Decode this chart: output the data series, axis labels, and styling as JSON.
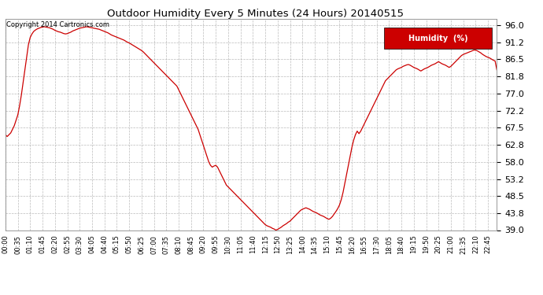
{
  "title": "Outdoor Humidity Every 5 Minutes (24 Hours) 20140515",
  "copyright": "Copyright 2014 Cartronics.com",
  "legend_label": "Humidity  (%)",
  "line_color": "#cc0000",
  "background_color": "#ffffff",
  "grid_color": "#aaaaaa",
  "ylim": [
    39.0,
    97.6
  ],
  "yticks": [
    39.0,
    43.8,
    48.5,
    53.2,
    58.0,
    62.8,
    67.5,
    72.2,
    77.0,
    81.8,
    86.5,
    91.2,
    96.0
  ],
  "xtick_step_min": 35,
  "total_minutes": 1435,
  "curve_points": [
    65.5,
    65.0,
    65.5,
    66.0,
    67.0,
    68.0,
    69.5,
    71.0,
    73.5,
    76.5,
    80.0,
    83.5,
    87.0,
    90.5,
    92.5,
    93.5,
    94.2,
    94.6,
    94.9,
    95.1,
    95.3,
    95.4,
    95.5,
    95.4,
    95.3,
    95.2,
    95.0,
    94.8,
    94.5,
    94.3,
    94.1,
    94.0,
    93.8,
    93.6,
    93.5,
    93.6,
    93.8,
    94.0,
    94.3,
    94.5,
    94.7,
    94.9,
    95.1,
    95.2,
    95.3,
    95.4,
    95.5,
    95.4,
    95.3,
    95.2,
    95.1,
    95.0,
    94.9,
    94.8,
    94.6,
    94.4,
    94.2,
    94.0,
    93.8,
    93.5,
    93.2,
    93.0,
    92.8,
    92.6,
    92.4,
    92.2,
    92.0,
    91.8,
    91.5,
    91.2,
    91.0,
    90.7,
    90.4,
    90.1,
    89.8,
    89.5,
    89.2,
    88.9,
    88.5,
    88.0,
    87.5,
    87.0,
    86.5,
    86.0,
    85.5,
    85.0,
    84.5,
    84.0,
    83.5,
    83.0,
    82.5,
    82.0,
    81.5,
    81.0,
    80.5,
    80.0,
    79.5,
    79.0,
    78.0,
    77.0,
    76.0,
    75.0,
    74.0,
    73.0,
    72.0,
    71.0,
    70.0,
    69.0,
    68.0,
    67.0,
    65.5,
    64.0,
    62.5,
    61.0,
    59.5,
    58.0,
    57.0,
    56.5,
    56.8,
    57.0,
    56.5,
    55.5,
    54.5,
    53.5,
    52.5,
    51.5,
    51.0,
    50.5,
    50.0,
    49.5,
    49.0,
    48.5,
    48.0,
    47.5,
    47.0,
    46.5,
    46.0,
    45.5,
    45.0,
    44.5,
    44.0,
    43.5,
    43.0,
    42.5,
    42.0,
    41.5,
    41.0,
    40.5,
    40.2,
    40.0,
    39.8,
    39.5,
    39.3,
    39.0,
    39.2,
    39.5,
    39.8,
    40.2,
    40.5,
    40.8,
    41.2,
    41.5,
    42.0,
    42.5,
    43.0,
    43.5,
    44.0,
    44.5,
    44.8,
    45.0,
    45.2,
    45.0,
    44.8,
    44.5,
    44.2,
    44.0,
    43.8,
    43.5,
    43.2,
    43.0,
    42.8,
    42.5,
    42.2,
    42.0,
    42.3,
    42.8,
    43.5,
    44.2,
    45.0,
    46.0,
    47.5,
    49.5,
    52.0,
    54.5,
    57.0,
    59.5,
    62.0,
    64.0,
    65.5,
    66.5,
    65.8,
    66.5,
    67.5,
    68.5,
    69.5,
    70.5,
    71.5,
    72.5,
    73.5,
    74.5,
    75.5,
    76.5,
    77.5,
    78.5,
    79.5,
    80.5,
    81.0,
    81.5,
    82.0,
    82.5,
    83.0,
    83.5,
    83.8,
    84.0,
    84.2,
    84.5,
    84.7,
    84.9,
    85.0,
    84.8,
    84.5,
    84.2,
    84.0,
    83.8,
    83.5,
    83.2,
    83.5,
    83.8,
    84.0,
    84.2,
    84.5,
    84.8,
    85.0,
    85.2,
    85.5,
    85.8,
    85.5,
    85.2,
    85.0,
    84.8,
    84.5,
    84.2,
    84.5,
    85.0,
    85.5,
    86.0,
    86.5,
    87.0,
    87.5,
    87.8,
    88.0,
    88.2,
    88.4,
    88.6,
    88.8,
    89.0,
    89.0,
    88.8,
    88.5,
    88.2,
    87.8,
    87.5,
    87.2,
    87.0,
    86.8,
    86.5,
    86.2,
    86.0,
    83.5
  ]
}
